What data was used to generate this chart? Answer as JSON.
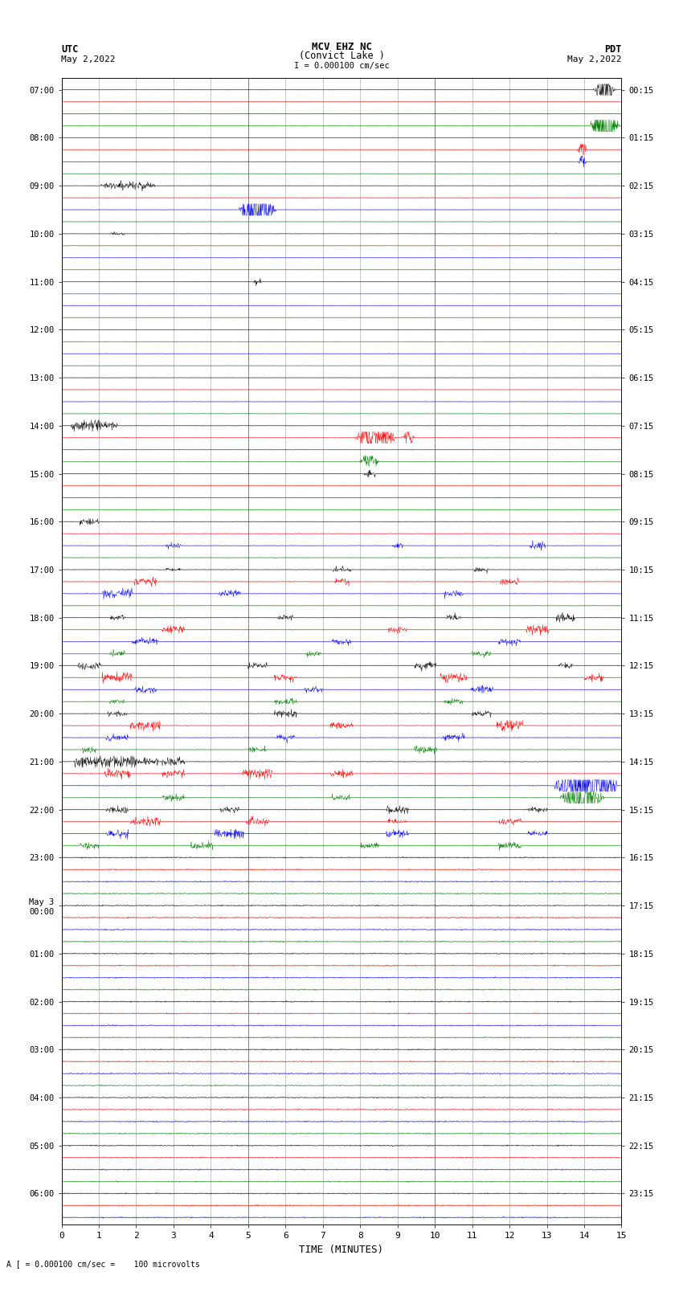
{
  "title_line1": "MCV EHZ NC",
  "title_line2": "(Convict Lake )",
  "title_line3": "I = 0.000100 cm/sec",
  "left_label1": "UTC",
  "left_label2": "May 2,2022",
  "right_label1": "PDT",
  "right_label2": "May 2,2022",
  "footer": "A [ = 0.000100 cm/sec =    100 microvolts",
  "xlabel": "TIME (MINUTES)",
  "utc_times": [
    "07:00",
    "",
    "",
    "",
    "08:00",
    "",
    "",
    "",
    "09:00",
    "",
    "",
    "",
    "10:00",
    "",
    "",
    "",
    "11:00",
    "",
    "",
    "",
    "12:00",
    "",
    "",
    "",
    "13:00",
    "",
    "",
    "",
    "14:00",
    "",
    "",
    "",
    "15:00",
    "",
    "",
    "",
    "16:00",
    "",
    "",
    "",
    "17:00",
    "",
    "",
    "",
    "18:00",
    "",
    "",
    "",
    "19:00",
    "",
    "",
    "",
    "20:00",
    "",
    "",
    "",
    "21:00",
    "",
    "",
    "",
    "22:00",
    "",
    "",
    "",
    "23:00",
    "",
    "",
    "",
    "May 3\n00:00",
    "",
    "",
    "",
    "01:00",
    "",
    "",
    "",
    "02:00",
    "",
    "",
    "",
    "03:00",
    "",
    "",
    "",
    "04:00",
    "",
    "",
    "",
    "05:00",
    "",
    "",
    "",
    "06:00",
    "",
    ""
  ],
  "pdt_times": [
    "00:15",
    "",
    "",
    "",
    "01:15",
    "",
    "",
    "",
    "02:15",
    "",
    "",
    "",
    "03:15",
    "",
    "",
    "",
    "04:15",
    "",
    "",
    "",
    "05:15",
    "",
    "",
    "",
    "06:15",
    "",
    "",
    "",
    "07:15",
    "",
    "",
    "",
    "08:15",
    "",
    "",
    "",
    "09:15",
    "",
    "",
    "",
    "10:15",
    "",
    "",
    "",
    "11:15",
    "",
    "",
    "",
    "12:15",
    "",
    "",
    "",
    "13:15",
    "",
    "",
    "",
    "14:15",
    "",
    "",
    "",
    "15:15",
    "",
    "",
    "",
    "16:15",
    "",
    "",
    "",
    "17:15",
    "",
    "",
    "",
    "18:15",
    "",
    "",
    "",
    "19:15",
    "",
    "",
    "",
    "20:15",
    "",
    "",
    "",
    "21:15",
    "",
    "",
    "",
    "22:15",
    "",
    "",
    "",
    "23:15",
    "",
    ""
  ],
  "n_traces": 95,
  "colors_cycle": [
    "black",
    "red",
    "blue",
    "green"
  ],
  "x_min": 0,
  "x_max": 15,
  "background_color": "white",
  "grid_color": "#999999",
  "fig_width": 8.5,
  "fig_height": 16.13
}
